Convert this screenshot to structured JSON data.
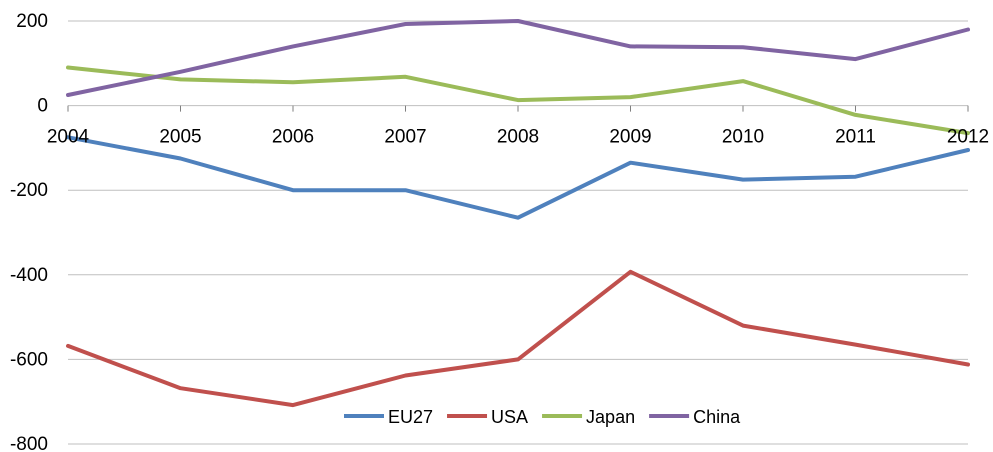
{
  "chart_data": {
    "type": "line",
    "title": "",
    "xlabel": "",
    "ylabel": "",
    "categories": [
      "2004",
      "2005",
      "2006",
      "2007",
      "2008",
      "2009",
      "2010",
      "2011",
      "2012"
    ],
    "ylim": [
      -800,
      200
    ],
    "yticks": [
      200,
      0,
      -200,
      -400,
      -600,
      -800
    ],
    "ytick_labels": [
      "200",
      "0",
      "-200",
      "-400",
      "-600",
      "-800"
    ],
    "grid": "horizontal",
    "legend_position": "bottom-center",
    "series": [
      {
        "name": "EU27",
        "color": "#4f81bd",
        "values": [
          -75,
          -125,
          -200,
          -200,
          -265,
          -135,
          -175,
          -168,
          -105
        ]
      },
      {
        "name": "USA",
        "color": "#c0504d",
        "values": [
          -568,
          -668,
          -708,
          -638,
          -600,
          -393,
          -520,
          -565,
          -612
        ]
      },
      {
        "name": "Japan",
        "color": "#9bbb59",
        "values": [
          90,
          62,
          55,
          68,
          13,
          20,
          58,
          -22,
          -65
        ]
      },
      {
        "name": "China",
        "color": "#8064a2",
        "values": [
          25,
          80,
          140,
          193,
          200,
          140,
          138,
          110,
          180
        ]
      }
    ]
  }
}
